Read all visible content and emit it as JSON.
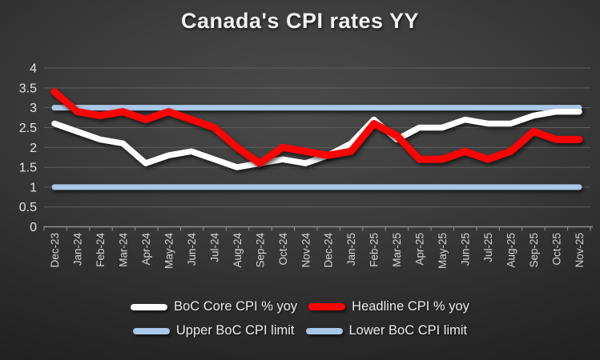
{
  "title": "Canada's CPI rates YY",
  "colors": {
    "core_line": "#ffffff",
    "headline_line": "#fb0404",
    "limit_line": "#a9c7e8",
    "background_center": "#4a4a4a",
    "background_edge": "#191919",
    "gridline": "#5e5e5e",
    "axis": "#8f8f8f",
    "label_text": "#e4e4e4"
  },
  "chart_data": {
    "type": "line",
    "title": "Canada's CPI rates YY",
    "categories": [
      "Dec-23",
      "Jan-24",
      "Feb-24",
      "Mar-24",
      "Apr-24",
      "May-24",
      "Jun-24",
      "Jul-24",
      "Aug-24",
      "Sep-24",
      "Oct-24",
      "Nov-24",
      "Dec-24",
      "Jan-25",
      "Feb-25",
      "Mar-25",
      "Apr-25",
      "May-25",
      "Jun-25",
      "Jul-25",
      "Aug-25",
      "Sep-25",
      "Oct-25",
      "Nov-25"
    ],
    "series": [
      {
        "name": "BoC Core CPI % yoy",
        "color": "#ffffff",
        "values": [
          2.6,
          2.4,
          2.2,
          2.1,
          1.6,
          1.8,
          1.9,
          1.7,
          1.5,
          1.6,
          1.7,
          1.6,
          1.8,
          2.1,
          2.7,
          2.2,
          2.5,
          2.5,
          2.7,
          2.6,
          2.6,
          2.8,
          2.9,
          2.9
        ]
      },
      {
        "name": "Headline CPI % yoy",
        "color": "#fb0404",
        "values": [
          3.4,
          2.9,
          2.8,
          2.9,
          2.7,
          2.9,
          2.7,
          2.5,
          2.0,
          1.6,
          2.0,
          1.9,
          1.8,
          1.9,
          2.6,
          2.3,
          1.7,
          1.7,
          1.9,
          1.7,
          1.9,
          2.4,
          2.2,
          2.2
        ]
      },
      {
        "name": "Upper BoC CPI limit",
        "color": "#a9c7e8",
        "values": [
          3,
          3,
          3,
          3,
          3,
          3,
          3,
          3,
          3,
          3,
          3,
          3,
          3,
          3,
          3,
          3,
          3,
          3,
          3,
          3,
          3,
          3,
          3,
          3
        ]
      },
      {
        "name": "Lower BoC CPI limit",
        "color": "#a9c7e8",
        "values": [
          1,
          1,
          1,
          1,
          1,
          1,
          1,
          1,
          1,
          1,
          1,
          1,
          1,
          1,
          1,
          1,
          1,
          1,
          1,
          1,
          1,
          1,
          1,
          1
        ]
      }
    ],
    "xlabel": "",
    "ylabel": "",
    "ylim": [
      0,
      4
    ],
    "y_tick_step": 0.5,
    "y_tick_labels": [
      "4",
      "3.5",
      "3",
      "2.5",
      "2",
      "1.5",
      "1",
      "0.5",
      "0"
    ],
    "grid": true,
    "legend_position": "bottom"
  },
  "legend": {
    "items": [
      {
        "label": "BoC Core CPI % yoy",
        "color": "#ffffff"
      },
      {
        "label": "Headline CPI % yoy",
        "color": "#fb0404"
      },
      {
        "label": "Upper BoC CPI limit",
        "color": "#a9c7e8"
      },
      {
        "label": "Lower BoC CPI limit",
        "color": "#a9c7e8"
      }
    ]
  }
}
